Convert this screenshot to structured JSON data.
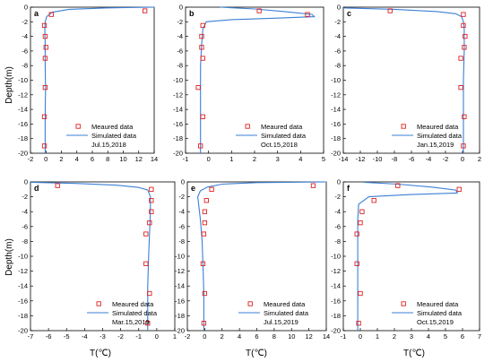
{
  "figure": {
    "ylabel": "Depth(m)",
    "xlabel": "T(℃)",
    "series_colors": {
      "measured": "#e02020",
      "simulated": "#3a7fd5"
    }
  },
  "chart_data": [
    {
      "type": "line",
      "panel_letter": "a",
      "date": "Jul.15,2018",
      "legend": [
        "Meaured data",
        "Simulated data"
      ],
      "xlim": [
        -2,
        14
      ],
      "xticks": [
        -2,
        0,
        2,
        4,
        6,
        8,
        10,
        12,
        14
      ],
      "ylim": [
        -20,
        0
      ],
      "yticks": [
        0,
        -2,
        -4,
        -6,
        -8,
        -10,
        -12,
        -14,
        -16,
        -18,
        -20
      ],
      "measured": {
        "x": [
          12.8,
          0.7,
          -0.2,
          -0.1,
          0.0,
          -0.1,
          -0.1,
          -0.2,
          -0.2
        ],
        "y": [
          -0.5,
          -1,
          -2.5,
          -4,
          -5.5,
          -7,
          -11,
          -15,
          -19
        ]
      },
      "simulated": {
        "x": [
          14.0,
          8.0,
          3.0,
          0.8,
          0.1,
          -0.1,
          -0.15,
          -0.1,
          -0.1,
          -0.05,
          -0.1,
          -0.1,
          -0.1
        ],
        "y": [
          0,
          -0.1,
          -0.3,
          -0.7,
          -1.3,
          -2,
          -3,
          -5,
          -8,
          -11,
          -15,
          -18,
          -20
        ]
      }
    },
    {
      "type": "line",
      "panel_letter": "b",
      "date": "Oct.15,2018",
      "legend": [
        "Meaured data",
        "Simulated data"
      ],
      "xlim": [
        -1,
        5
      ],
      "xticks": [
        -1,
        0,
        1,
        2,
        3,
        4,
        5
      ],
      "ylim": [
        -20,
        0
      ],
      "yticks": [
        0,
        -2,
        -4,
        -6,
        -8,
        -10,
        -12,
        -14,
        -16,
        -18,
        -20
      ],
      "measured": {
        "x": [
          2.2,
          4.3,
          -0.25,
          -0.3,
          -0.3,
          -0.25,
          -0.45,
          -0.25,
          -0.35
        ],
        "y": [
          -0.5,
          -1,
          -2.5,
          -4,
          -5.5,
          -7,
          -11,
          -15,
          -19
        ]
      },
      "simulated": {
        "x": [
          0.5,
          2.0,
          3.3,
          4.5,
          4.6,
          3.0,
          1.0,
          -0.1,
          -0.25,
          -0.3,
          -0.35,
          -0.35,
          -0.35,
          -0.35
        ],
        "y": [
          0,
          -0.25,
          -0.6,
          -1.0,
          -1.3,
          -1.5,
          -1.7,
          -2,
          -3,
          -5,
          -8,
          -12,
          -16,
          -20
        ]
      }
    },
    {
      "type": "line",
      "panel_letter": "c",
      "date": "Jan.15,2019",
      "legend": [
        "Meaured data",
        "Simulated data"
      ],
      "xlim": [
        -14,
        2
      ],
      "xticks": [
        -14,
        -12,
        -10,
        -8,
        -6,
        -4,
        -2,
        0,
        2
      ],
      "ylim": [
        -20,
        0
      ],
      "yticks": [
        0,
        -2,
        -4,
        -6,
        -8,
        -10,
        -12,
        -14,
        -16,
        -18,
        -20
      ],
      "measured": {
        "x": [
          -8.5,
          0.1,
          0.1,
          0.3,
          0.2,
          -0.2,
          -0.2,
          0.2,
          0.1
        ],
        "y": [
          -0.5,
          -1,
          -2.5,
          -4,
          -5.5,
          -7,
          -11,
          -15,
          -19
        ]
      },
      "simulated": {
        "x": [
          -14.0,
          -8.0,
          -3.0,
          -0.8,
          -0.1,
          0.1,
          0.2,
          0.2,
          0.1,
          0.1,
          0.1
        ],
        "y": [
          -0.1,
          -0.3,
          -0.6,
          -0.9,
          -1.3,
          -2,
          -3,
          -6,
          -10,
          -15,
          -20
        ]
      }
    },
    {
      "type": "line",
      "panel_letter": "d",
      "date": "Mar.15,2019",
      "legend": [
        "Meaured data",
        "Simulated data"
      ],
      "xlim": [
        -7,
        1
      ],
      "xticks": [
        -7,
        -6,
        -5,
        -4,
        -3,
        -2,
        -1,
        0,
        1
      ],
      "ylim": [
        -20,
        0
      ],
      "yticks": [
        0,
        -2,
        -4,
        -6,
        -8,
        -10,
        -12,
        -14,
        -16,
        -18,
        -20
      ],
      "measured": {
        "x": [
          -5.5,
          -0.3,
          -0.3,
          -0.3,
          -0.4,
          -0.6,
          -0.6,
          -0.4,
          -0.5
        ],
        "y": [
          -0.5,
          -1,
          -2.5,
          -4,
          -5.5,
          -7,
          -11,
          -15,
          -19
        ]
      },
      "simulated": {
        "x": [
          -7.0,
          -4.5,
          -2.2,
          -1.0,
          -0.5,
          -0.35,
          -0.35,
          -0.4,
          -0.45,
          -0.5,
          -0.5,
          -0.5
        ],
        "y": [
          -0.05,
          -0.2,
          -0.45,
          -0.75,
          -1.1,
          -2,
          -4,
          -7,
          -10,
          -14,
          -17,
          -20
        ]
      }
    },
    {
      "type": "line",
      "panel_letter": "e",
      "date": "Jul.15,2019",
      "legend": [
        "Meaured data",
        "Simulated data"
      ],
      "xlim": [
        -2,
        14
      ],
      "xticks": [
        -2,
        0,
        2,
        4,
        6,
        8,
        10,
        12,
        14
      ],
      "ylim": [
        -20,
        0
      ],
      "yticks": [
        0,
        -2,
        -4,
        -6,
        -8,
        -10,
        -12,
        -14,
        -16,
        -18,
        -20
      ],
      "measured": {
        "x": [
          12.5,
          0.8,
          0.2,
          0.0,
          0.0,
          -0.1,
          -0.2,
          0.0,
          -0.1
        ],
        "y": [
          -0.5,
          -1,
          -2.5,
          -4,
          -5.5,
          -7,
          -11,
          -15,
          -19
        ]
      },
      "simulated": {
        "x": [
          14.0,
          6.0,
          2.0,
          0.3,
          -0.5,
          -0.8,
          -0.7,
          -0.5,
          -0.3,
          -0.2,
          -0.1,
          -0.1,
          -0.1
        ],
        "y": [
          0,
          -0.1,
          -0.3,
          -0.7,
          -1.2,
          -2,
          -3,
          -5,
          -8,
          -11,
          -15,
          -18,
          -20
        ]
      }
    },
    {
      "type": "line",
      "panel_letter": "f",
      "date": "Oct.15,2019",
      "legend": [
        "Meaured data",
        "Simulated data"
      ],
      "xlim": [
        -1,
        7
      ],
      "xticks": [
        -1,
        0,
        1,
        2,
        3,
        4,
        5,
        6,
        7
      ],
      "ylim": [
        -20,
        0
      ],
      "yticks": [
        0,
        -2,
        -4,
        -6,
        -8,
        -10,
        -12,
        -14,
        -16,
        -18,
        -20
      ],
      "measured": {
        "x": [
          2.2,
          5.8,
          0.8,
          0.1,
          0.0,
          -0.2,
          -0.2,
          0.0,
          -0.1
        ],
        "y": [
          -0.5,
          -1,
          -2.5,
          -4,
          -5.5,
          -7,
          -11,
          -15,
          -19
        ]
      },
      "simulated": {
        "x": [
          0.2,
          2.2,
          4.2,
          5.6,
          5.7,
          3.0,
          0.5,
          -0.1,
          -0.15,
          -0.15,
          -0.15,
          -0.15,
          -0.15
        ],
        "y": [
          -0.05,
          -0.3,
          -0.7,
          -1.1,
          -1.5,
          -1.7,
          -2,
          -3,
          -5,
          -8,
          -12,
          -16,
          -20
        ]
      }
    }
  ]
}
